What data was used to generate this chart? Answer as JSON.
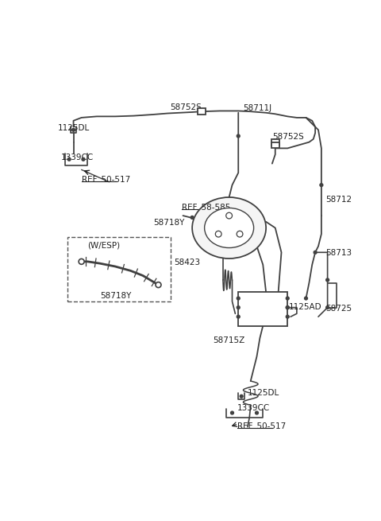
{
  "bg_color": "#ffffff",
  "line_color": "#404040",
  "text_color": "#202020",
  "fig_width": 4.8,
  "fig_height": 6.55,
  "dpi": 100,
  "xlim": [
    0,
    480
  ],
  "ylim": [
    0,
    655
  ]
}
